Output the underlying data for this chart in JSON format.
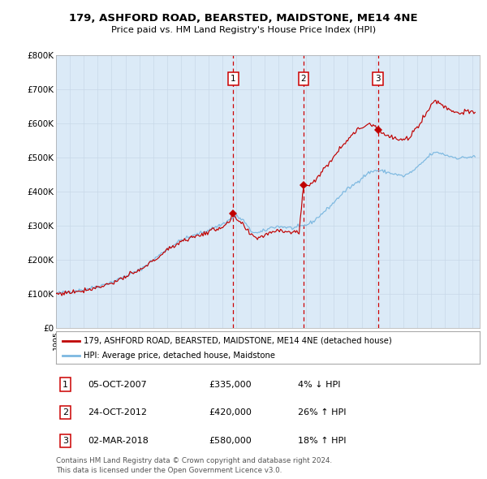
{
  "title": "179, ASHFORD ROAD, BEARSTED, MAIDSTONE, ME14 4NE",
  "subtitle": "Price paid vs. HM Land Registry's House Price Index (HPI)",
  "legend_line1": "179, ASHFORD ROAD, BEARSTED, MAIDSTONE, ME14 4NE (detached house)",
  "legend_line2": "HPI: Average price, detached house, Maidstone",
  "footer_line1": "Contains HM Land Registry data © Crown copyright and database right 2024.",
  "footer_line2": "This data is licensed under the Open Government Licence v3.0.",
  "transactions": [
    {
      "num": 1,
      "date": "05-OCT-2007",
      "price": 335000,
      "pct": "4%",
      "dir": "↓",
      "year_x": 2007.76
    },
    {
      "num": 2,
      "date": "24-OCT-2012",
      "price": 420000,
      "pct": "26%",
      "dir": "↑",
      "year_x": 2012.82
    },
    {
      "num": 3,
      "date": "02-MAR-2018",
      "price": 580000,
      "pct": "18%",
      "dir": "↑",
      "year_x": 2018.17
    }
  ],
  "hpi_color": "#7cb8e0",
  "price_color": "#c00000",
  "background_color": "#dbeaf7",
  "plot_bg": "#ffffff",
  "dashed_color": "#cc0000",
  "ylim": [
    0,
    800000
  ],
  "xlim_start": 1995.0,
  "xlim_end": 2025.5,
  "yticks": [
    0,
    100000,
    200000,
    300000,
    400000,
    500000,
    600000,
    700000,
    800000
  ],
  "ytick_labels": [
    "£0",
    "£100K",
    "£200K",
    "£300K",
    "£400K",
    "£500K",
    "£600K",
    "£700K",
    "£800K"
  ]
}
